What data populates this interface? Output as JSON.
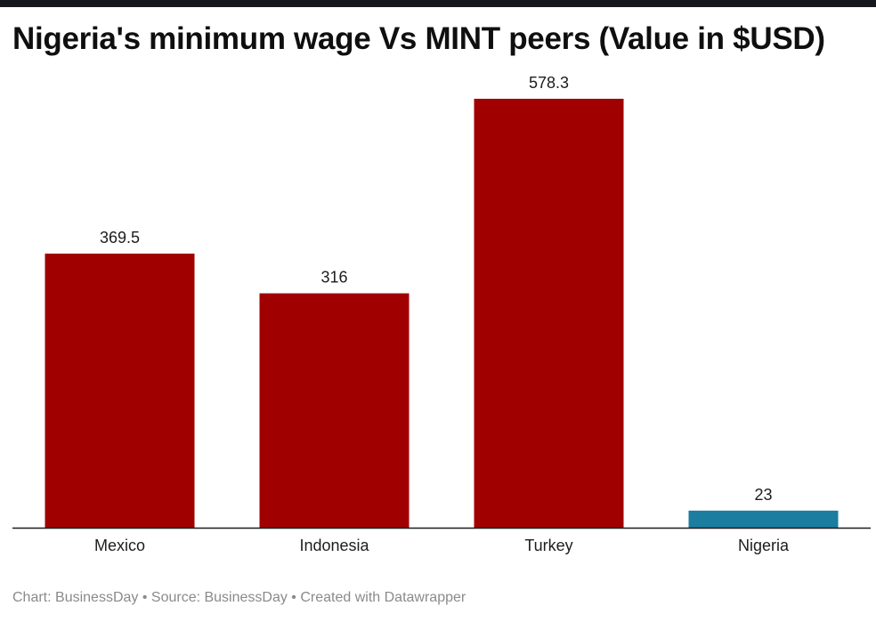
{
  "title": "Nigeria's minimum wage Vs MINT peers (Value in $USD)",
  "footer": {
    "chart_credit": "Chart: BusinessDay",
    "source": "Source: BusinessDay",
    "created_with": "Created with Datawrapper",
    "separator": " • "
  },
  "chart_data": {
    "type": "bar",
    "title": "Nigeria's minimum wage Vs MINT peers (Value in $USD)",
    "categories": [
      "Mexico",
      "Indonesia",
      "Turkey",
      "Nigeria"
    ],
    "values": [
      369.5,
      316,
      578.3,
      23
    ],
    "value_labels": [
      "369.5",
      "316",
      "578.3",
      "23"
    ],
    "colors": [
      "#a00000",
      "#a00000",
      "#a00000",
      "#1b7da0"
    ],
    "xlabel": "",
    "ylabel": "",
    "ylim": [
      0,
      578.3
    ],
    "grid": false,
    "legend": "none"
  },
  "colors": {
    "bar_default": "#a00000",
    "bar_highlight": "#1b7da0",
    "axis": "#1d1d1d",
    "footer_text": "#8a8a8a"
  }
}
